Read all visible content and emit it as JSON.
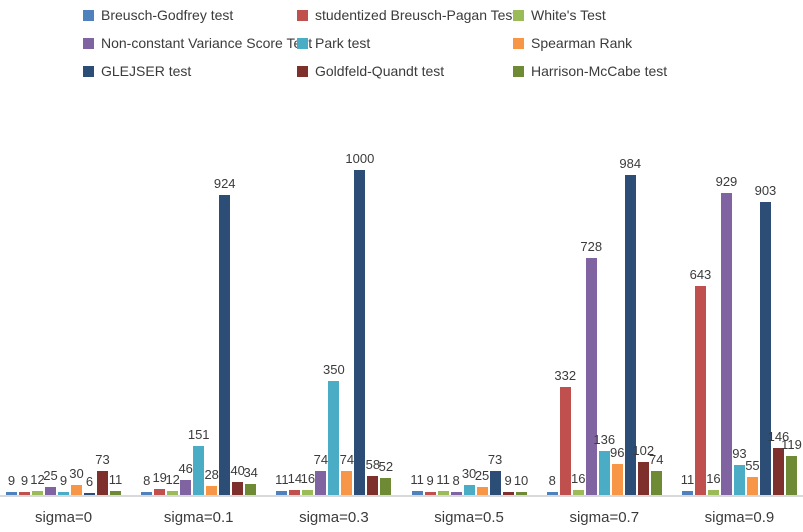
{
  "figure": {
    "background": "#ffffff",
    "axis_line_color": "#d9d9d9",
    "text_color": "#3b3b3b"
  },
  "chart_data": {
    "type": "bar",
    "title": "",
    "xlabel": "",
    "ylabel": "",
    "ylim": [
      0,
      1000
    ],
    "grid": false,
    "legend_position": "top",
    "data_labels": true,
    "categories": [
      "sigma=0",
      "sigma=0.1",
      "sigma=0.3",
      "sigma=0.5",
      "sigma=0.7",
      "sigma=0.9"
    ],
    "series": [
      {
        "name": "Breusch-Godfrey test",
        "color": "#4f81bd",
        "values": [
          9,
          8,
          11,
          11,
          8,
          11
        ]
      },
      {
        "name": "studentized Breusch-Pagan Test",
        "color": "#c0504d",
        "values": [
          9,
          19,
          14,
          9,
          332,
          643
        ]
      },
      {
        "name": "White's Test",
        "color": "#9bbb59",
        "values": [
          12,
          12,
          16,
          11,
          16,
          16
        ]
      },
      {
        "name": "Non-constant Variance Score Test",
        "color": "#8064a2",
        "values": [
          25,
          46,
          74,
          8,
          728,
          929
        ]
      },
      {
        "name": "Park test",
        "color": "#4bacc6",
        "values": [
          9,
          151,
          350,
          30,
          136,
          93
        ]
      },
      {
        "name": "Spearman Rank",
        "color": "#f79646",
        "values": [
          30,
          28,
          74,
          25,
          96,
          55
        ]
      },
      {
        "name": "GLEJSER test",
        "color": "#2c4d75",
        "values": [
          6,
          924,
          1000,
          73,
          984,
          903
        ]
      },
      {
        "name": "Goldfeld-Quandt test",
        "color": "#7e302c",
        "values": [
          73,
          40,
          58,
          9,
          102,
          146
        ]
      },
      {
        "name": "Harrison-McCabe test",
        "color": "#6f8a35",
        "values": [
          11,
          34,
          52,
          10,
          74,
          119
        ]
      }
    ]
  }
}
